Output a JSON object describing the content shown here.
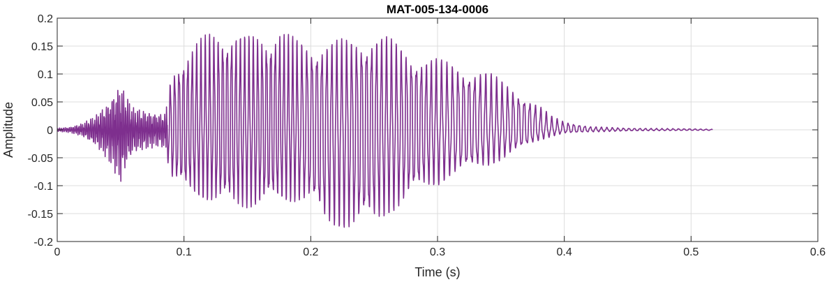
{
  "chart_data": {
    "type": "line",
    "title": "MAT-005-134-0006",
    "xlabel": "Time (s)",
    "ylabel": "Amplitude",
    "xlim": [
      0,
      0.6
    ],
    "ylim": [
      -0.2,
      0.2
    ],
    "grid": true,
    "x_ticks": [
      0,
      0.1,
      0.2,
      0.3,
      0.4,
      0.5,
      0.6
    ],
    "x_tick_labels": [
      "0",
      "0.1",
      "0.2",
      "0.3",
      "0.4",
      "0.5",
      "0.6"
    ],
    "y_ticks": [
      -0.2,
      -0.15,
      -0.1,
      -0.05,
      0,
      0.05,
      0.1,
      0.15,
      0.2
    ],
    "y_tick_labels": [
      "-0.2",
      "-0.15",
      "-0.1",
      "-0.05",
      "0",
      "0.05",
      "0.1",
      "0.15",
      "0.2"
    ],
    "series": [
      {
        "color": "#7E2F8E",
        "duration_s": 0.517,
        "envelope": {
          "t": [
            0.0,
            0.01,
            0.02,
            0.03,
            0.04,
            0.045,
            0.05,
            0.055,
            0.06,
            0.07,
            0.08,
            0.085,
            0.09,
            0.1,
            0.11,
            0.12,
            0.13,
            0.14,
            0.15,
            0.16,
            0.17,
            0.175,
            0.18,
            0.19,
            0.2,
            0.21,
            0.22,
            0.23,
            0.24,
            0.25,
            0.26,
            0.27,
            0.28,
            0.29,
            0.3,
            0.31,
            0.32,
            0.33,
            0.34,
            0.35,
            0.36,
            0.37,
            0.38,
            0.39,
            0.4,
            0.42,
            0.45,
            0.5,
            0.517
          ],
          "max": [
            0.003,
            0.005,
            0.012,
            0.025,
            0.05,
            0.07,
            0.085,
            0.06,
            0.04,
            0.035,
            0.03,
            0.03,
            0.1,
            0.14,
            0.16,
            0.175,
            0.182,
            0.178,
            0.17,
            0.172,
            0.178,
            0.183,
            0.175,
            0.165,
            0.16,
            0.158,
            0.162,
            0.165,
            0.17,
            0.172,
            0.168,
            0.155,
            0.14,
            0.13,
            0.128,
            0.122,
            0.115,
            0.11,
            0.105,
            0.09,
            0.075,
            0.06,
            0.045,
            0.025,
            0.015,
            0.006,
            0.003,
            0.002,
            0.001
          ],
          "min": [
            -0.003,
            -0.005,
            -0.012,
            -0.03,
            -0.055,
            -0.075,
            -0.1,
            -0.065,
            -0.045,
            -0.035,
            -0.03,
            -0.035,
            -0.09,
            -0.11,
            -0.12,
            -0.13,
            -0.135,
            -0.14,
            -0.14,
            -0.14,
            -0.135,
            -0.13,
            -0.13,
            -0.13,
            -0.135,
            -0.17,
            -0.175,
            -0.18,
            -0.178,
            -0.17,
            -0.155,
            -0.14,
            -0.12,
            -0.105,
            -0.1,
            -0.085,
            -0.075,
            -0.07,
            -0.065,
            -0.055,
            -0.04,
            -0.03,
            -0.02,
            -0.012,
            -0.006,
            -0.004,
            -0.002,
            -0.001,
            -0.001
          ]
        }
      }
    ]
  }
}
